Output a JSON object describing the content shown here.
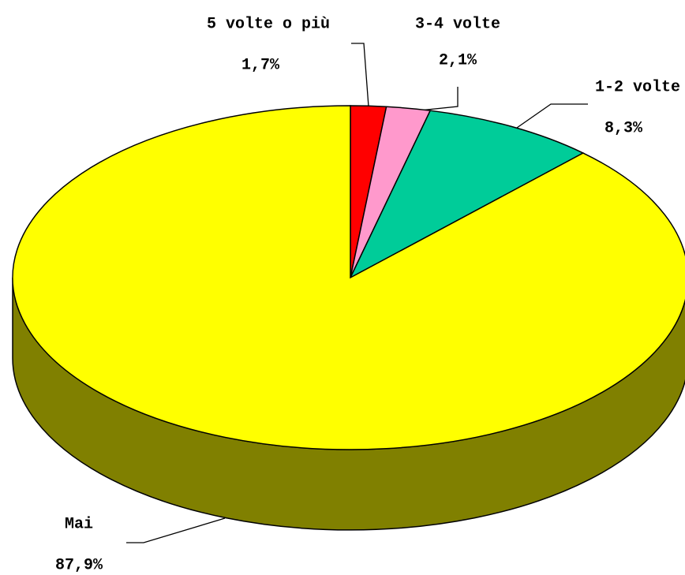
{
  "chart_data": {
    "type": "pie",
    "categories": [
      "5 volte o più",
      "3-4 volte",
      "1-2 volte",
      "Mai"
    ],
    "values": [
      1.7,
      2.1,
      8.3,
      87.9
    ],
    "value_labels": [
      "1,7%",
      "2,1%",
      "8,3%",
      "87,9%"
    ],
    "colors": [
      "#ff0000",
      "#ff99cc",
      "#00cc99",
      "#ffff00"
    ],
    "three_d": true
  }
}
